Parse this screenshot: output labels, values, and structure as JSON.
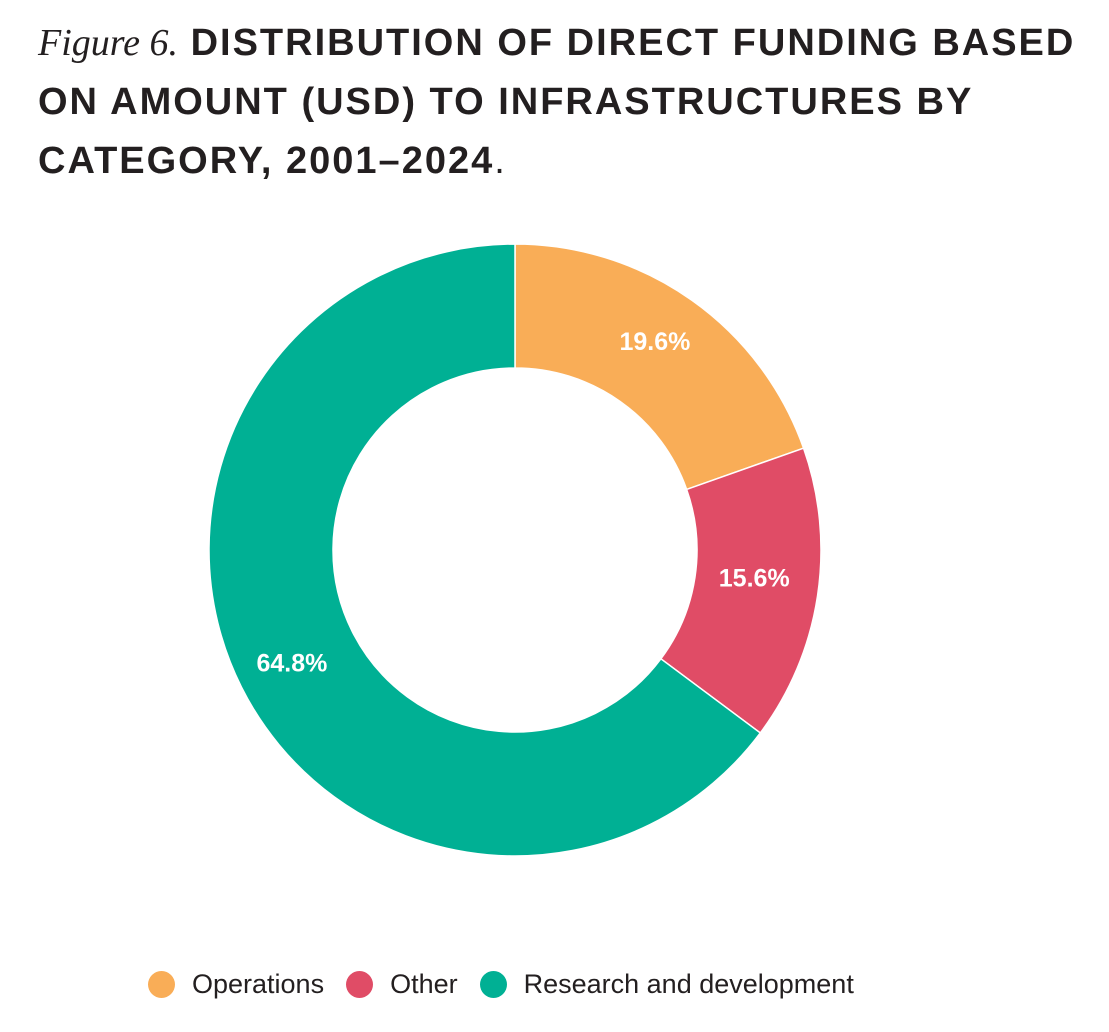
{
  "title": {
    "figure_label": "Figure 6.",
    "text": "DISTRIBUTION OF DIRECT FUNDING BASED ON AMOUNT (USD) TO INFRASTRUCTURES BY CATEGORY, 2001–2024",
    "end_punct": "."
  },
  "chart_data": {
    "type": "pie",
    "variant": "donut",
    "title": "DISTRIBUTION OF DIRECT FUNDING BASED ON AMOUNT (USD) TO INFRASTRUCTURES BY CATEGORY, 2001–2024",
    "unit": "%",
    "legend_position": "bottom",
    "slices": [
      {
        "label": "Operations",
        "value": 19.6,
        "display": "19.6%",
        "color": "#f9ad57"
      },
      {
        "label": "Other",
        "value": 15.6,
        "display": "15.6%",
        "color": "#e04c66"
      },
      {
        "label": "Research and development",
        "value": 64.8,
        "display": "64.8%",
        "color": "#00b094"
      }
    ]
  },
  "legend": {
    "items": [
      {
        "label": "Operations",
        "color": "#f9ad57"
      },
      {
        "label": "Other",
        "color": "#e04c66"
      },
      {
        "label": "Research and development",
        "color": "#00b094"
      }
    ]
  }
}
